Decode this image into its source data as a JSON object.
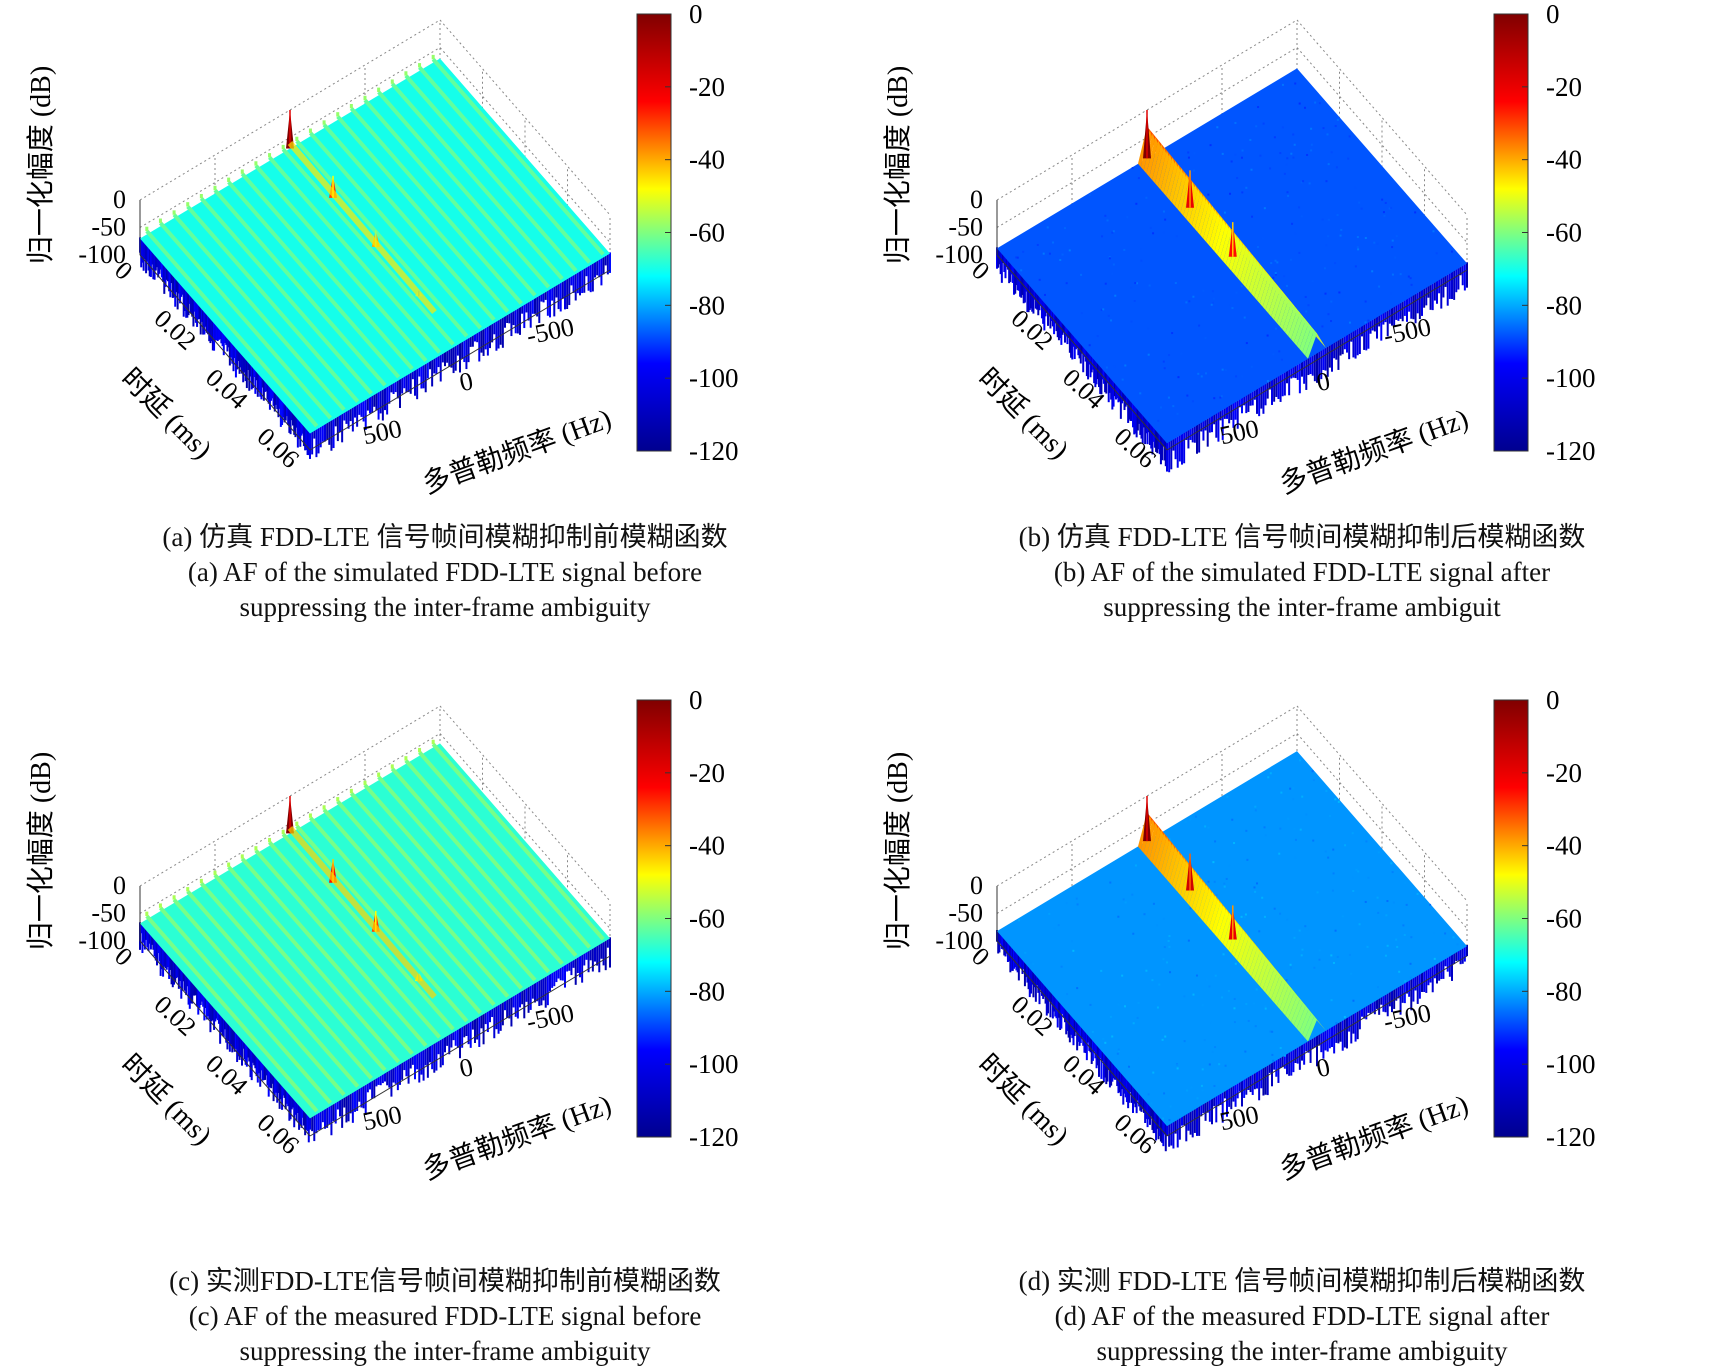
{
  "chart_data": [
    {
      "type": "surface",
      "panel": "a",
      "title_cn": "(a) 仿真 FDD-LTE 信号帧间模糊抑制前模糊函数",
      "title_en_line1": "(a) AF of the simulated FDD-LTE signal before",
      "title_en_line2": "suppressing the inter-frame ambiguity",
      "zlabel": "归一化幅度 (dB)",
      "ylabel": "时延 (ms)",
      "xlabel": "多普勒频率 (Hz)",
      "zticks": [
        "0",
        "-50",
        "-100"
      ],
      "yticks": [
        "0",
        "0.02",
        "0.04",
        "0.06"
      ],
      "xticks": [
        "500",
        "0",
        "-500"
      ],
      "colorbar_ticks": [
        "0",
        "-20",
        "-40",
        "-60",
        "-80",
        "-100",
        "-120"
      ],
      "zlim": [
        -100,
        0
      ],
      "floor_db": -70,
      "ridge": false,
      "stripes": true,
      "peaks": [
        {
          "delay_ms": 0,
          "doppler_hz": 0,
          "db": 0
        },
        {
          "delay_ms": 0.0167,
          "doppler_hz": 0,
          "db": -30
        },
        {
          "delay_ms": 0.0333,
          "doppler_hz": 0,
          "db": -40
        },
        {
          "delay_ms": 0.05,
          "doppler_hz": 0,
          "db": -60
        }
      ]
    },
    {
      "type": "surface",
      "panel": "b",
      "title_cn": "(b) 仿真 FDD-LTE 信号帧间模糊抑制后模糊函数",
      "title_en_line1": "(b) AF of the simulated FDD-LTE signal after",
      "title_en_line2": "suppressing the inter-frame ambiguit",
      "zlabel": "归一化幅度 (dB)",
      "ylabel": "时延 (ms)",
      "xlabel": "多普勒频率 (Hz)",
      "zticks": [
        "0",
        "-50",
        "-100"
      ],
      "yticks": [
        "0",
        "0.02",
        "0.04",
        "0.06"
      ],
      "xticks": [
        "500",
        "0",
        "-500"
      ],
      "colorbar_ticks": [
        "0",
        "-20",
        "-40",
        "-60",
        "-80",
        "-100",
        "-120"
      ],
      "zlim": [
        -100,
        0
      ],
      "floor_db": -88,
      "ridge": true,
      "stripes": false,
      "peaks": [
        {
          "delay_ms": 0,
          "doppler_hz": 0,
          "db": 0
        },
        {
          "delay_ms": 0.0167,
          "doppler_hz": 0,
          "db": -20
        },
        {
          "delay_ms": 0.0333,
          "doppler_hz": 0,
          "db": -25
        }
      ]
    },
    {
      "type": "surface",
      "panel": "c",
      "title_cn": "(c) 实测FDD-LTE信号帧间模糊抑制前模糊函数",
      "title_en_line1": "(c) AF of the measured FDD-LTE signal before",
      "title_en_line2": "suppressing the inter-frame ambiguity",
      "zlabel": "归一化幅度 (dB)",
      "ylabel": "时延 (ms)",
      "xlabel": "多普勒频率 (Hz)",
      "zticks": [
        "0",
        "-50",
        "-100"
      ],
      "yticks": [
        "0",
        "0.02",
        "0.04",
        "0.06"
      ],
      "xticks": [
        "500",
        "0",
        "-500"
      ],
      "colorbar_ticks": [
        "0",
        "-20",
        "-40",
        "-60",
        "-80",
        "-100",
        "-120"
      ],
      "zlim": [
        -100,
        0
      ],
      "floor_db": -68,
      "ridge": false,
      "stripes": true,
      "peaks": [
        {
          "delay_ms": 0,
          "doppler_hz": 0,
          "db": 0
        },
        {
          "delay_ms": 0.0167,
          "doppler_hz": 0,
          "db": -25
        },
        {
          "delay_ms": 0.0333,
          "doppler_hz": 0,
          "db": -30
        },
        {
          "delay_ms": 0.05,
          "doppler_hz": 0,
          "db": -50
        }
      ]
    },
    {
      "type": "surface",
      "panel": "d",
      "title_cn": "(d) 实测 FDD-LTE 信号帧间模糊抑制后模糊函数",
      "title_en_line1": "(d) AF of the measured FDD-LTE signal after",
      "title_en_line2": "suppressing the inter-frame ambiguity",
      "zlabel": "归一化幅度 (dB)",
      "ylabel": "时延 (ms)",
      "xlabel": "多普勒频率 (Hz)",
      "zticks": [
        "0",
        "-50",
        "-100"
      ],
      "yticks": [
        "0",
        "0.02",
        "0.04",
        "0.06"
      ],
      "xticks": [
        "500",
        "0",
        "-500"
      ],
      "colorbar_ticks": [
        "0",
        "-20",
        "-40",
        "-60",
        "-80",
        "-100",
        "-120"
      ],
      "zlim": [
        -100,
        0
      ],
      "floor_db": -82,
      "ridge": true,
      "stripes": false,
      "peaks": [
        {
          "delay_ms": 0,
          "doppler_hz": 0,
          "db": 0
        },
        {
          "delay_ms": 0.0167,
          "doppler_hz": 0,
          "db": -15
        },
        {
          "delay_ms": 0.0333,
          "doppler_hz": 0,
          "db": -20
        }
      ]
    }
  ],
  "colormap": "jet",
  "colors": {
    "jet": [
      "#00008f",
      "#0000ff",
      "#00ffff",
      "#ffff00",
      "#ff0000",
      "#800000"
    ]
  }
}
